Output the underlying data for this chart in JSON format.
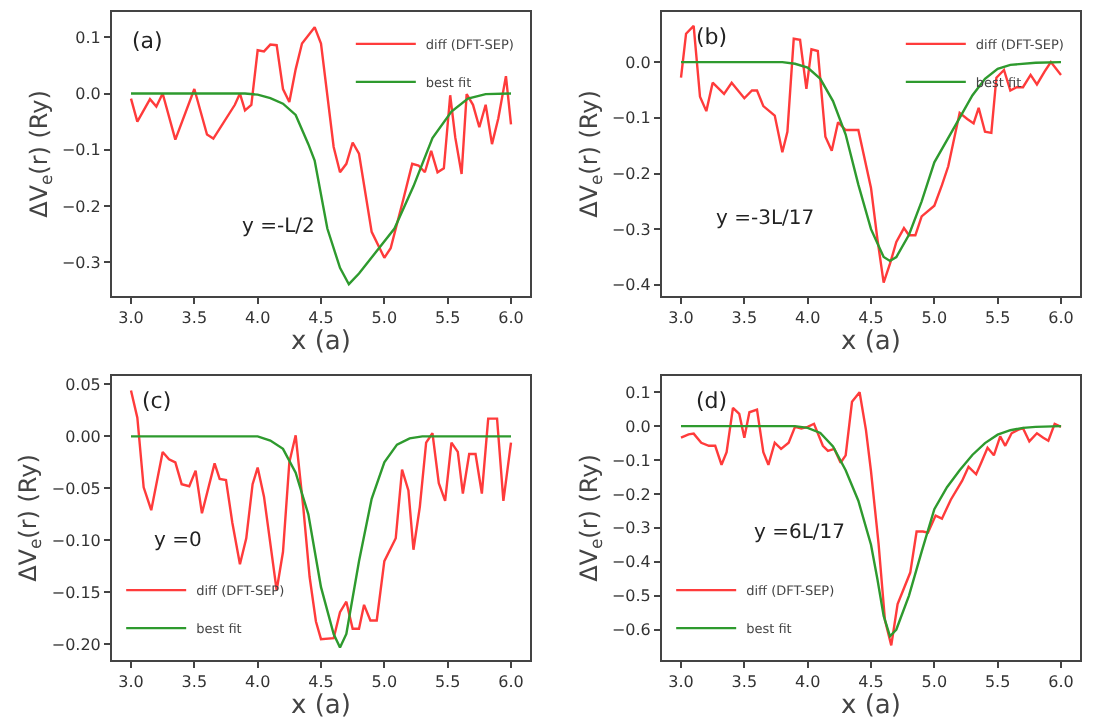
{
  "chart_data": [
    {
      "type": "line",
      "xlabel": "x (a)",
      "ylabel": "ΔV$_{e}$(r) (Ry)",
      "annotations": [
        "(a)",
        "y =-L/2"
      ],
      "legend": "top right",
      "grid": false,
      "xlim": [
        2.85,
        6.15
      ],
      "xticks": [
        {
          "value": 3,
          "label": "3.0"
        },
        {
          "value": 3.5,
          "label": "3.5"
        },
        {
          "value": 4,
          "label": "4.0"
        },
        {
          "value": 4.5,
          "label": "4.5"
        },
        {
          "value": 5,
          "label": "5.0"
        },
        {
          "value": 5.5,
          "label": "5.5"
        },
        {
          "value": 6,
          "label": "6.0"
        }
      ],
      "ylim": [
        -0.36,
        0.145
      ],
      "yticks": [
        {
          "value": -0.3,
          "label": "−0.3"
        },
        {
          "value": -0.2,
          "label": "−0.2"
        },
        {
          "value": -0.1,
          "label": "−0.1"
        },
        {
          "value": 0,
          "label": "0.0"
        },
        {
          "value": 0.1,
          "label": "0.1"
        }
      ],
      "series": [
        {
          "name": "diff (DFT-SEP)",
          "color": "#ff3b3b",
          "x": [
            3.0,
            3.05,
            3.15,
            3.2,
            3.25,
            3.35,
            3.5,
            3.6,
            3.65,
            3.82,
            3.86,
            3.9,
            3.95,
            4.0,
            4.05,
            4.1,
            4.15,
            4.2,
            4.25,
            4.3,
            4.35,
            4.45,
            4.5,
            4.6,
            4.65,
            4.7,
            4.75,
            4.8,
            4.9,
            5.0,
            5.05,
            5.15,
            5.22,
            5.27,
            5.32,
            5.37,
            5.42,
            5.47,
            5.52,
            5.56,
            5.61,
            5.65,
            5.7,
            5.75,
            5.8,
            5.85,
            5.9,
            5.96,
            6.0
          ],
          "values": [
            -0.009,
            -0.05,
            -0.01,
            -0.023,
            0.0,
            -0.082,
            0.008,
            -0.073,
            -0.08,
            -0.02,
            0.0,
            -0.03,
            -0.02,
            0.077,
            0.075,
            0.087,
            0.086,
            0.008,
            -0.015,
            0.043,
            0.089,
            0.118,
            0.089,
            -0.095,
            -0.14,
            -0.125,
            -0.087,
            -0.107,
            -0.246,
            -0.292,
            -0.275,
            -0.188,
            -0.125,
            -0.128,
            -0.14,
            -0.102,
            -0.14,
            -0.133,
            -0.003,
            -0.078,
            -0.143,
            -0.001,
            -0.02,
            -0.06,
            -0.02,
            -0.09,
            -0.044,
            0.031,
            -0.055
          ]
        },
        {
          "name": "best fit",
          "color": "#2e9a2e",
          "x": [
            3.0,
            3.5,
            3.9,
            4.0,
            4.1,
            4.2,
            4.3,
            4.4,
            4.45,
            4.55,
            4.65,
            4.72,
            4.8,
            4.94,
            5.08,
            5.23,
            5.38,
            5.53,
            5.66,
            5.8,
            6.0
          ],
          "values": [
            0,
            0,
            0,
            -0.002,
            -0.008,
            -0.018,
            -0.038,
            -0.09,
            -0.119,
            -0.24,
            -0.31,
            -0.339,
            -0.32,
            -0.28,
            -0.24,
            -0.165,
            -0.079,
            -0.032,
            -0.009,
            -0.001,
            0
          ]
        }
      ]
    },
    {
      "type": "line",
      "xlabel": "x (a)",
      "ylabel": "ΔV$_{e}$(r) (Ry)",
      "annotations": [
        "(b)",
        "y =-3L/17"
      ],
      "legend": "top right",
      "grid": false,
      "xlim": [
        2.85,
        6.15
      ],
      "xticks": [
        {
          "value": 3,
          "label": "3.0"
        },
        {
          "value": 3.5,
          "label": "3.5"
        },
        {
          "value": 4,
          "label": "4.0"
        },
        {
          "value": 4.5,
          "label": "4.5"
        },
        {
          "value": 5,
          "label": "5.0"
        },
        {
          "value": 5.5,
          "label": "5.5"
        },
        {
          "value": 6,
          "label": "6.0"
        }
      ],
      "ylim": [
        -0.42,
        0.09
      ],
      "yticks": [
        {
          "value": -0.4,
          "label": "−0.4"
        },
        {
          "value": -0.3,
          "label": "−0.3"
        },
        {
          "value": -0.2,
          "label": "−0.2"
        },
        {
          "value": -0.1,
          "label": "−0.1"
        },
        {
          "value": 0,
          "label": "0.0"
        }
      ],
      "series": [
        {
          "name": "diff (DFT-SEP)",
          "color": "#ff3b3b",
          "x": [
            3.0,
            3.04,
            3.1,
            3.15,
            3.2,
            3.25,
            3.34,
            3.4,
            3.5,
            3.56,
            3.6,
            3.65,
            3.74,
            3.8,
            3.84,
            3.89,
            3.94,
            3.99,
            4.03,
            4.08,
            4.14,
            4.19,
            4.24,
            4.3,
            4.4,
            4.5,
            4.55,
            4.6,
            4.65,
            4.7,
            4.76,
            4.8,
            4.85,
            4.9,
            5.0,
            5.06,
            5.11,
            5.2,
            5.26,
            5.31,
            5.35,
            5.4,
            5.45,
            5.49,
            5.55,
            5.6,
            5.65,
            5.7,
            5.76,
            5.81,
            5.87,
            5.92,
            6.0
          ],
          "values": [
            -0.028,
            0.051,
            0.065,
            -0.062,
            -0.088,
            -0.037,
            -0.057,
            -0.037,
            -0.065,
            -0.051,
            -0.051,
            -0.079,
            -0.096,
            -0.162,
            -0.125,
            0.042,
            0.04,
            -0.048,
            0.023,
            0.02,
            -0.134,
            -0.159,
            -0.108,
            -0.122,
            -0.122,
            -0.226,
            -0.317,
            -0.396,
            -0.362,
            -0.323,
            -0.298,
            -0.311,
            -0.311,
            -0.277,
            -0.258,
            -0.221,
            -0.187,
            -0.091,
            -0.102,
            -0.11,
            -0.082,
            -0.125,
            -0.127,
            -0.028,
            -0.014,
            -0.051,
            -0.045,
            -0.045,
            -0.023,
            -0.04,
            -0.017,
            0.0,
            -0.023
          ]
        },
        {
          "name": "best fit",
          "color": "#2e9a2e",
          "x": [
            3.0,
            3.5,
            3.8,
            3.9,
            4.0,
            4.1,
            4.2,
            4.3,
            4.4,
            4.5,
            4.6,
            4.65,
            4.7,
            4.8,
            4.9,
            5.0,
            5.1,
            5.2,
            5.3,
            5.4,
            5.5,
            5.6,
            5.8,
            6.0
          ],
          "values": [
            0,
            0,
            0,
            -0.003,
            -0.01,
            -0.03,
            -0.07,
            -0.13,
            -0.22,
            -0.3,
            -0.35,
            -0.357,
            -0.35,
            -0.31,
            -0.25,
            -0.18,
            -0.14,
            -0.1,
            -0.06,
            -0.03,
            -0.012,
            -0.005,
            -0.001,
            0
          ]
        }
      ]
    },
    {
      "type": "line",
      "xlabel": "x (a)",
      "ylabel": "ΔV$_{e}$(r) (Ry)",
      "annotations": [
        "(c)",
        "y =0"
      ],
      "legend": "bottom left",
      "grid": false,
      "xlim": [
        2.85,
        6.15
      ],
      "xticks": [
        {
          "value": 3,
          "label": "3.0"
        },
        {
          "value": 3.5,
          "label": "3.5"
        },
        {
          "value": 4,
          "label": "4.0"
        },
        {
          "value": 4.5,
          "label": "4.5"
        },
        {
          "value": 5,
          "label": "5.0"
        },
        {
          "value": 5.5,
          "label": "5.5"
        },
        {
          "value": 6,
          "label": "6.0"
        }
      ],
      "ylim": [
        -0.215,
        0.058
      ],
      "yticks": [
        {
          "value": -0.2,
          "label": "−0.20"
        },
        {
          "value": -0.15,
          "label": "−0.15"
        },
        {
          "value": -0.1,
          "label": "−0.10"
        },
        {
          "value": -0.05,
          "label": "−0.05"
        },
        {
          "value": 0,
          "label": "0.00"
        },
        {
          "value": 0.05,
          "label": "0.05"
        }
      ],
      "series": [
        {
          "name": "diff (DFT-SEP)",
          "color": "#ff3b3b",
          "x": [
            3.0,
            3.05,
            3.1,
            3.16,
            3.25,
            3.3,
            3.35,
            3.4,
            3.46,
            3.51,
            3.56,
            3.66,
            3.7,
            3.75,
            3.8,
            3.86,
            3.91,
            3.96,
            4.0,
            4.05,
            4.15,
            4.2,
            4.25,
            4.3,
            4.36,
            4.41,
            4.46,
            4.5,
            4.6,
            4.65,
            4.7,
            4.75,
            4.8,
            4.84,
            4.89,
            4.94,
            5.0,
            5.09,
            5.14,
            5.19,
            5.23,
            5.28,
            5.33,
            5.38,
            5.43,
            5.48,
            5.53,
            5.58,
            5.62,
            5.67,
            5.72,
            5.77,
            5.82,
            5.89,
            5.94,
            6.0
          ],
          "values": [
            0.044,
            0.018,
            -0.049,
            -0.071,
            -0.015,
            -0.022,
            -0.025,
            -0.046,
            -0.048,
            -0.033,
            -0.074,
            -0.026,
            -0.041,
            -0.042,
            -0.083,
            -0.123,
            -0.098,
            -0.046,
            -0.03,
            -0.058,
            -0.148,
            -0.111,
            -0.025,
            0.001,
            -0.068,
            -0.135,
            -0.178,
            -0.195,
            -0.194,
            -0.169,
            -0.159,
            -0.185,
            -0.185,
            -0.162,
            -0.177,
            -0.177,
            -0.12,
            -0.098,
            -0.032,
            -0.052,
            -0.109,
            -0.068,
            -0.006,
            0.003,
            -0.045,
            -0.062,
            -0.006,
            -0.015,
            -0.055,
            -0.017,
            -0.017,
            -0.055,
            0.017,
            0.017,
            -0.062,
            -0.006
          ]
        },
        {
          "name": "best fit",
          "color": "#2e9a2e",
          "x": [
            3.0,
            3.5,
            4.0,
            4.1,
            4.2,
            4.3,
            4.4,
            4.5,
            4.6,
            4.65,
            4.7,
            4.8,
            4.9,
            5.0,
            5.1,
            5.2,
            5.3,
            6.0
          ],
          "values": [
            0,
            0,
            0,
            -0.004,
            -0.012,
            -0.035,
            -0.075,
            -0.145,
            -0.19,
            -0.203,
            -0.19,
            -0.12,
            -0.06,
            -0.025,
            -0.008,
            -0.002,
            0,
            0
          ]
        }
      ]
    },
    {
      "type": "line",
      "xlabel": "x (a)",
      "ylabel": "ΔV$_{e}$(r) (Ry)",
      "annotations": [
        "(d)",
        "y =6L/17"
      ],
      "legend": "bottom left",
      "grid": false,
      "xlim": [
        2.85,
        6.15
      ],
      "xticks": [
        {
          "value": 3,
          "label": "3.0"
        },
        {
          "value": 3.5,
          "label": "3.5"
        },
        {
          "value": 4,
          "label": "4.0"
        },
        {
          "value": 4.5,
          "label": "4.5"
        },
        {
          "value": 5,
          "label": "5.0"
        },
        {
          "value": 5.5,
          "label": "5.5"
        },
        {
          "value": 6,
          "label": "6.0"
        }
      ],
      "ylim": [
        -0.69,
        0.148
      ],
      "yticks": [
        {
          "value": -0.6,
          "label": "−0.6"
        },
        {
          "value": -0.5,
          "label": "−0.5"
        },
        {
          "value": -0.4,
          "label": "−0.4"
        },
        {
          "value": -0.3,
          "label": "−0.3"
        },
        {
          "value": -0.2,
          "label": "−0.2"
        },
        {
          "value": -0.1,
          "label": "−0.1"
        },
        {
          "value": 0,
          "label": "0.0"
        },
        {
          "value": 0.1,
          "label": "0.1"
        }
      ],
      "series": [
        {
          "name": "diff (DFT-SEP)",
          "color": "#ff3b3b",
          "x": [
            3.0,
            3.06,
            3.1,
            3.16,
            3.22,
            3.27,
            3.32,
            3.36,
            3.41,
            3.46,
            3.5,
            3.54,
            3.6,
            3.65,
            3.69,
            3.74,
            3.79,
            3.85,
            3.9,
            3.95,
            4.0,
            4.05,
            4.12,
            4.16,
            4.21,
            4.26,
            4.3,
            4.35,
            4.41,
            4.46,
            4.5,
            4.56,
            4.61,
            4.66,
            4.71,
            4.75,
            4.81,
            4.86,
            4.91,
            4.95,
            5.01,
            5.06,
            5.13,
            5.22,
            5.27,
            5.33,
            5.37,
            5.42,
            5.47,
            5.52,
            5.56,
            5.61,
            5.66,
            5.7,
            5.75,
            5.81,
            5.86,
            5.9,
            5.95,
            6.0
          ],
          "values": [
            -0.034,
            -0.024,
            -0.022,
            -0.049,
            -0.058,
            -0.058,
            -0.114,
            -0.077,
            0.054,
            0.036,
            -0.034,
            0.041,
            0.049,
            -0.077,
            -0.114,
            -0.049,
            -0.067,
            -0.049,
            -0.002,
            -0.007,
            -0.002,
            0.007,
            -0.058,
            -0.073,
            -0.067,
            -0.108,
            -0.086,
            0.072,
            0.1,
            -0.011,
            -0.133,
            -0.348,
            -0.572,
            -0.647,
            -0.525,
            -0.488,
            -0.432,
            -0.311,
            -0.311,
            -0.314,
            -0.264,
            -0.273,
            -0.217,
            -0.161,
            -0.12,
            -0.142,
            -0.108,
            -0.064,
            -0.086,
            -0.03,
            -0.058,
            -0.021,
            -0.011,
            -0.006,
            -0.045,
            -0.021,
            -0.034,
            -0.043,
            0.007,
            -0.002
          ]
        },
        {
          "name": "best fit",
          "color": "#2e9a2e",
          "x": [
            3.0,
            3.5,
            3.9,
            4.0,
            4.1,
            4.2,
            4.3,
            4.4,
            4.5,
            4.55,
            4.6,
            4.65,
            4.7,
            4.8,
            4.9,
            5.0,
            5.1,
            5.2,
            5.3,
            5.4,
            5.5,
            5.6,
            5.7,
            5.8,
            6.0
          ],
          "values": [
            0,
            0,
            0,
            -0.005,
            -0.02,
            -0.06,
            -0.13,
            -0.22,
            -0.35,
            -0.45,
            -0.56,
            -0.62,
            -0.6,
            -0.5,
            -0.37,
            -0.245,
            -0.18,
            -0.13,
            -0.085,
            -0.05,
            -0.025,
            -0.012,
            -0.005,
            -0.002,
            0
          ]
        }
      ]
    }
  ]
}
